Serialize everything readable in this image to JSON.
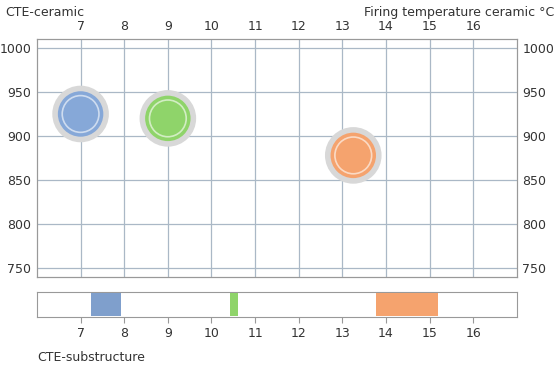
{
  "chart_data": [
    {
      "type": "scatter",
      "x_label": "CTE-ceramic",
      "y2_label": "Firing temperature ceramic °C",
      "x": [
        7.0,
        9.0,
        13.25
      ],
      "values": [
        925,
        920,
        878
      ],
      "colors": [
        "#86a8d8",
        "#8fd46a",
        "#f5a36e"
      ],
      "xlim": [
        6,
        17
      ],
      "xticks": [
        7,
        8,
        9,
        10,
        11,
        12,
        13,
        14,
        15,
        16
      ],
      "ylim": [
        740,
        1010
      ],
      "yticks": [
        750,
        800,
        850,
        900,
        950,
        1000
      ],
      "y2lim": [
        740,
        1010
      ],
      "y2ticks": [
        750,
        800,
        850,
        900,
        950,
        1000
      ],
      "grid": true
    },
    {
      "type": "range",
      "x_label": "CTE-substructure",
      "ranges": [
        [
          7.23,
          7.93
        ],
        [
          10.42,
          10.6
        ],
        [
          13.78,
          15.2
        ]
      ],
      "colors": [
        "#7f9fcc",
        "#8fd46a",
        "#f5a36e"
      ],
      "xlim": [
        6,
        17
      ],
      "xticks": [
        7,
        8,
        9,
        10,
        11,
        12,
        13,
        14,
        15,
        16
      ],
      "tick_labels": "x",
      "grid": false
    }
  ]
}
